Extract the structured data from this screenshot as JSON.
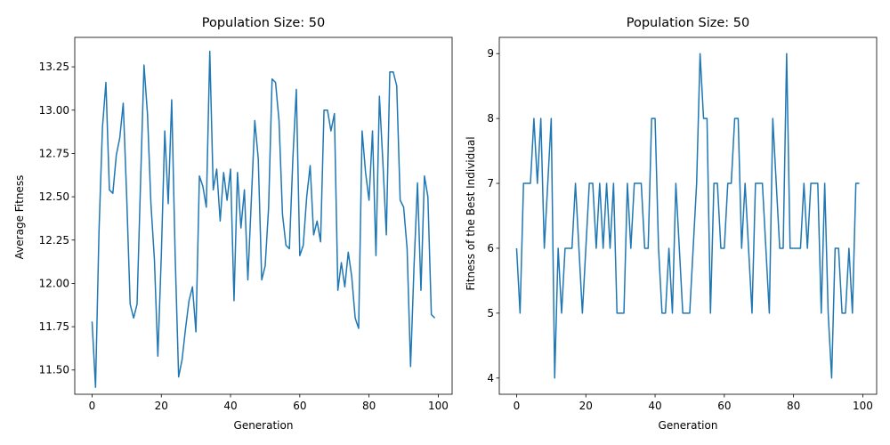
{
  "chart_data": [
    {
      "type": "line",
      "title": "Population Size: 50",
      "xlabel": "Generation",
      "ylabel": "Average Fitness",
      "xlim": [
        -5,
        104
      ],
      "ylim": [
        11.36,
        13.42
      ],
      "xticks": [
        0,
        20,
        40,
        60,
        80,
        100
      ],
      "xtick_labels": [
        "0",
        "20",
        "40",
        "60",
        "80",
        "100"
      ],
      "yticks": [
        11.5,
        11.75,
        12.0,
        12.25,
        12.5,
        12.75,
        13.0,
        13.25
      ],
      "ytick_labels": [
        "11.50",
        "11.75",
        "12.00",
        "12.25",
        "12.50",
        "12.75",
        "13.00",
        "13.25"
      ],
      "grid": false,
      "color": "#1f77b4",
      "series": [
        {
          "x": [
            0,
            1,
            2,
            3,
            4,
            5,
            6,
            7,
            8,
            9,
            10,
            11,
            12,
            13,
            14,
            15,
            16,
            17,
            18,
            19,
            20,
            21,
            22,
            23,
            24,
            25,
            26,
            27,
            28,
            29,
            30,
            31,
            32,
            33,
            34,
            35,
            36,
            37,
            38,
            39,
            40,
            41,
            42,
            43,
            44,
            45,
            46,
            47,
            48,
            49,
            50,
            51,
            52,
            53,
            54,
            55,
            56,
            57,
            58,
            59,
            60,
            61,
            62,
            63,
            64,
            65,
            66,
            67,
            68,
            69,
            70,
            71,
            72,
            73,
            74,
            75,
            76,
            77,
            78,
            79,
            80,
            81,
            82,
            83,
            84,
            85,
            86,
            87,
            88,
            89,
            90,
            91,
            92,
            93,
            94,
            95,
            96,
            97,
            98,
            99
          ],
          "y": [
            11.78,
            11.4,
            12.3,
            12.9,
            13.16,
            12.54,
            12.52,
            12.74,
            12.84,
            13.04,
            12.5,
            11.88,
            11.8,
            11.88,
            12.58,
            13.26,
            12.98,
            12.46,
            12.14,
            11.58,
            12.16,
            12.88,
            12.46,
            13.06,
            12.16,
            11.46,
            11.56,
            11.74,
            11.9,
            11.98,
            11.72,
            12.62,
            12.56,
            12.44,
            13.34,
            12.54,
            12.66,
            12.36,
            12.64,
            12.48,
            12.66,
            11.9,
            12.64,
            12.32,
            12.54,
            12.02,
            12.48,
            12.94,
            12.72,
            12.02,
            12.1,
            12.44,
            13.18,
            13.16,
            12.94,
            12.4,
            12.22,
            12.2,
            12.72,
            13.12,
            12.16,
            12.22,
            12.5,
            12.68,
            12.28,
            12.36,
            12.24,
            13.0,
            13.0,
            12.88,
            12.98,
            11.96,
            12.12,
            11.98,
            12.18,
            12.04,
            11.8,
            11.74,
            12.88,
            12.64,
            12.48,
            12.88,
            12.16,
            13.08,
            12.7,
            12.28,
            13.22,
            13.22,
            13.14,
            12.48,
            12.44,
            12.2,
            11.52,
            12.1,
            12.58,
            11.96,
            12.62,
            12.5,
            11.82,
            11.8
          ]
        }
      ]
    },
    {
      "type": "line",
      "title": "Population Size: 50",
      "xlabel": "Generation",
      "ylabel": "Fitness of the Best Individual",
      "xlim": [
        -5,
        104
      ],
      "ylim": [
        3.75,
        9.25
      ],
      "xticks": [
        0,
        20,
        40,
        60,
        80,
        100
      ],
      "xtick_labels": [
        "0",
        "20",
        "40",
        "60",
        "80",
        "100"
      ],
      "yticks": [
        4,
        5,
        6,
        7,
        8,
        9
      ],
      "ytick_labels": [
        "4",
        "5",
        "6",
        "7",
        "8",
        "9"
      ],
      "grid": false,
      "color": "#1f77b4",
      "series": [
        {
          "x": [
            0,
            1,
            2,
            3,
            4,
            5,
            6,
            7,
            8,
            9,
            10,
            11,
            12,
            13,
            14,
            15,
            16,
            17,
            18,
            19,
            20,
            21,
            22,
            23,
            24,
            25,
            26,
            27,
            28,
            29,
            30,
            31,
            32,
            33,
            34,
            35,
            36,
            37,
            38,
            39,
            40,
            41,
            42,
            43,
            44,
            45,
            46,
            47,
            48,
            49,
            50,
            51,
            52,
            53,
            54,
            55,
            56,
            57,
            58,
            59,
            60,
            61,
            62,
            63,
            64,
            65,
            66,
            67,
            68,
            69,
            70,
            71,
            72,
            73,
            74,
            75,
            76,
            77,
            78,
            79,
            80,
            81,
            82,
            83,
            84,
            85,
            86,
            87,
            88,
            89,
            90,
            91,
            92,
            93,
            94,
            95,
            96,
            97,
            98,
            99
          ],
          "y": [
            6,
            5,
            7,
            7,
            7,
            8,
            7,
            8,
            6,
            7,
            8,
            4,
            6,
            5,
            6,
            6,
            6,
            7,
            6,
            5,
            6,
            7,
            7,
            6,
            7,
            6,
            7,
            6,
            7,
            5,
            5,
            5,
            7,
            6,
            7,
            7,
            7,
            6,
            6,
            8,
            8,
            6,
            5,
            5,
            6,
            5,
            7,
            6,
            5,
            5,
            5,
            6,
            7,
            9,
            8,
            8,
            5,
            7,
            7,
            6,
            6,
            7,
            7,
            8,
            8,
            6,
            7,
            6,
            5,
            7,
            7,
            7,
            6,
            5,
            8,
            7,
            6,
            6,
            9,
            6,
            6,
            6,
            6,
            7,
            6,
            7,
            7,
            7,
            5,
            7,
            5,
            4,
            6,
            6,
            5,
            5,
            6,
            5,
            7,
            7
          ]
        }
      ]
    }
  ]
}
